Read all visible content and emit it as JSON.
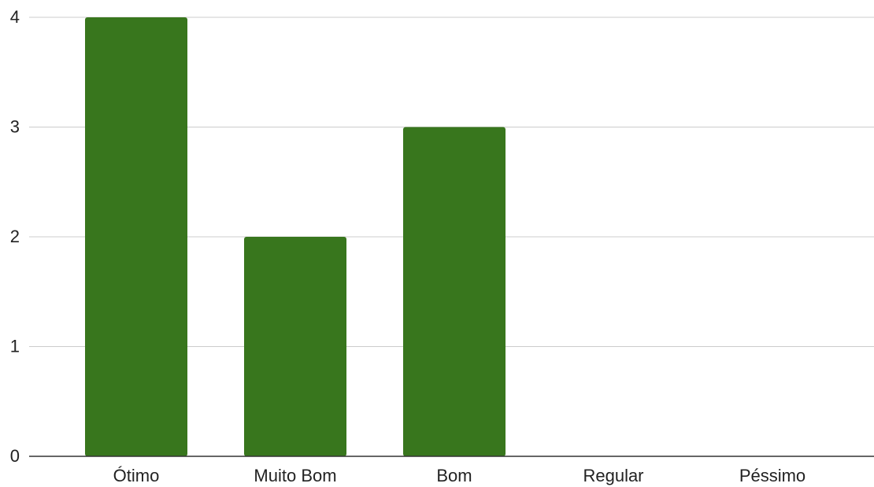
{
  "chart_data": {
    "type": "bar",
    "categories": [
      "Ótimo",
      "Muito Bom",
      "Bom",
      "Regular",
      "Péssimo"
    ],
    "values": [
      4,
      2,
      3,
      0,
      0
    ],
    "title": "",
    "xlabel": "",
    "ylabel": "",
    "ylim": [
      0,
      4
    ],
    "yticks": [
      0,
      1,
      2,
      3,
      4
    ],
    "grid": true,
    "legend": "none",
    "colors": {
      "bar": "#38761d",
      "grid": "#cccccc",
      "axis": "#333333"
    }
  }
}
